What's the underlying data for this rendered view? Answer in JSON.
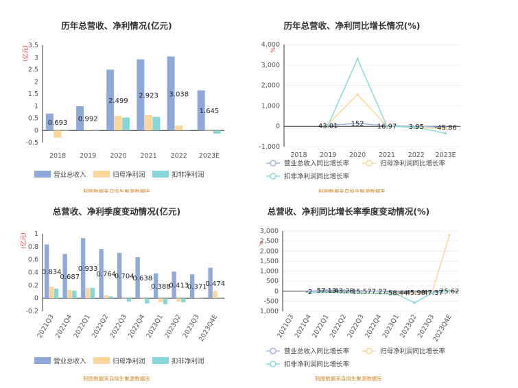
{
  "colors": {
    "revenue": "#8fa9d8",
    "profit": "#fbd79c",
    "deducted": "#88d6d8",
    "revenue_line": "#9fb6df",
    "profit_line": "#fcd69a",
    "deducted_line": "#8bd8d8",
    "unit": "#e03b3b",
    "source": "#d08a2e"
  },
  "source_note": "制图数据来自恒生聚源数据库",
  "chart_data": [
    {
      "type": "bar",
      "title": "历年总营收、净利情况(亿元)",
      "unit_label": "(亿元)",
      "categories": [
        "2018",
        "2019",
        "2020",
        "2021",
        "2022",
        "2023E"
      ],
      "series": [
        {
          "name": "营业总收入",
          "values": [
            0.693,
            0.992,
            2.499,
            2.923,
            3.038,
            1.645
          ]
        },
        {
          "name": "归母净利润",
          "values": [
            -0.3,
            0.02,
            0.6,
            0.63,
            0.2,
            0.0
          ]
        },
        {
          "name": "扣非净利润",
          "values": [
            -0.02,
            -0.01,
            0.53,
            0.56,
            0.02,
            -0.13
          ]
        }
      ],
      "data_labels": [
        "0.693",
        "0.992",
        "2.499",
        "2.923",
        "3.038",
        "1.645"
      ],
      "yticks": [
        "3.5",
        "3",
        "2.5",
        "2",
        "1.5",
        "1",
        "0.5",
        "0",
        "-0.5"
      ],
      "ylim": [
        -0.5,
        3.5
      ],
      "legend_position": "bottom-left"
    },
    {
      "type": "line",
      "title": "历年总营收、净利同比增长情况(%)",
      "unit_label": "%",
      "categories": [
        "2018",
        "2019",
        "2020",
        "2021",
        "2022",
        "2023E"
      ],
      "series": [
        {
          "name": "营业总收入同比增长率",
          "values": [
            null,
            43.01,
            152,
            16.97,
            3.95,
            -45.86
          ]
        },
        {
          "name": "归母净利润同比增长率",
          "values": [
            null,
            100,
            1560,
            10,
            -70,
            -100
          ]
        },
        {
          "name": "扣非净利润同比增长率",
          "values": [
            null,
            60,
            3300,
            10,
            -50,
            -350
          ]
        }
      ],
      "data_labels": [
        "",
        "43.01",
        "152",
        "16.97",
        "3.95",
        "-45.86"
      ],
      "yticks": [
        "4,000",
        "3,000",
        "2,000",
        "1,000",
        "0",
        "-1,000"
      ],
      "ylim": [
        -1000,
        4000
      ],
      "legend_position": "bottom"
    },
    {
      "type": "bar",
      "title": "总营收、净利季度变动情况(亿元)",
      "unit_label": "(亿元)",
      "categories": [
        "2021Q3",
        "2021Q4",
        "2022Q1",
        "2022Q2",
        "2022Q3",
        "2022Q4",
        "2023Q1",
        "2023Q2",
        "2023Q3",
        "2023Q4E"
      ],
      "series": [
        {
          "name": "营业总收入",
          "values": [
            0.834,
            0.687,
            0.933,
            0.764,
            0.704,
            0.638,
            0.388,
            0.413,
            0.371,
            0.474
          ]
        },
        {
          "name": "归母净利润",
          "values": [
            0.18,
            0.13,
            0.16,
            0.05,
            0.0,
            0.0,
            -0.06,
            -0.05,
            0.01,
            0.11
          ]
        },
        {
          "name": "扣非净利润",
          "values": [
            0.15,
            0.12,
            0.16,
            0.03,
            -0.05,
            -0.08,
            -0.09,
            -0.06,
            0.0,
            0.0
          ]
        }
      ],
      "data_labels": [
        "0.834",
        "0.687",
        "0.933",
        "0.764",
        "0.704",
        "0.638",
        "0.388",
        "0.413",
        "0.371",
        "0.474"
      ],
      "yticks": [
        "1",
        "0.8",
        "0.6",
        "0.4",
        "0.2",
        "0",
        "-0.2"
      ],
      "ylim": [
        -0.2,
        1.0
      ],
      "legend_position": "bottom-left"
    },
    {
      "type": "line",
      "title": "总营收、净利同比增长率季度变动情况(%)",
      "unit_label": "%",
      "categories": [
        "2021Q3",
        "2021Q4",
        "2022Q1",
        "2022Q2",
        "2022Q3",
        "2022Q4",
        "2023Q1",
        "2023Q2",
        "2023Q3",
        "2023Q4E"
      ],
      "series": [
        {
          "name": "营业总收入同比增长率",
          "values": [
            null,
            -2,
            57.13,
            43.28,
            15.57,
            7.27,
            -58.44,
            -45.98,
            -47.37,
            25.62
          ]
        },
        {
          "name": "归母净利润同比增长率",
          "values": [
            null,
            -80,
            -50,
            -80,
            -90,
            -100,
            -120,
            -100,
            -80,
            2800
          ]
        },
        {
          "name": "扣非净利润同比增长率",
          "values": [
            null,
            -80,
            -50,
            -80,
            -100,
            -120,
            -150,
            -580,
            -100,
            40
          ]
        }
      ],
      "data_labels": [
        "",
        "-2",
        "57.13",
        "43.28",
        "15.57",
        "7.27",
        "-58.44",
        "-45.98",
        "-47.37",
        "25.62"
      ],
      "yticks": [
        "3,000",
        "2,500",
        "2,000",
        "1,500",
        "1,000",
        "500",
        "0",
        "-500",
        "-1,000"
      ],
      "ylim": [
        -1000,
        3000
      ],
      "legend_position": "bottom"
    }
  ]
}
